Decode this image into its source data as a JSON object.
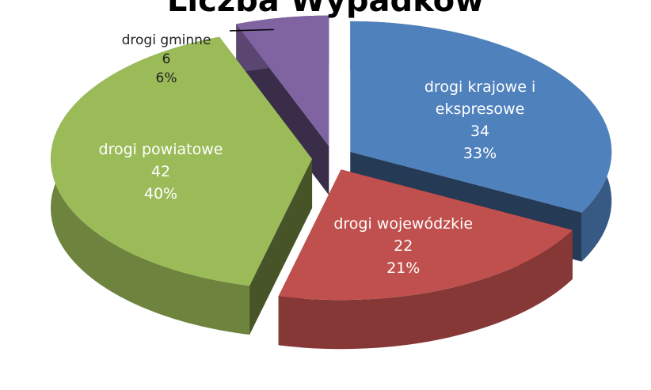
{
  "chart_data": {
    "type": "pie",
    "title": "Liczba Wypadków",
    "categories": [
      "drogi krajowe i ekspresowe",
      "drogi wojewódzkie",
      "drogi powiatowe",
      "drogi gminne"
    ],
    "values": [
      34,
      22,
      42,
      6
    ],
    "percent_labels": [
      "33%",
      "21%",
      "40%",
      "6%"
    ],
    "colors": [
      "#4f81bd",
      "#c0504d",
      "#9bbb59",
      "#8064a2"
    ]
  }
}
